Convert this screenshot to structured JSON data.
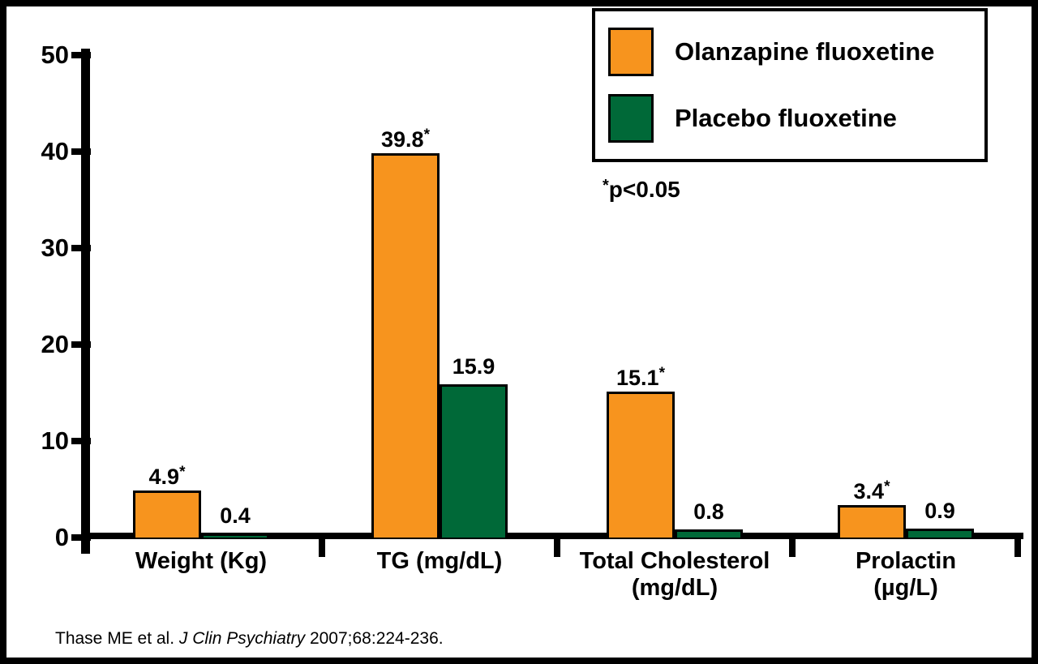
{
  "chart_data": {
    "type": "bar",
    "title": "",
    "xlabel": "",
    "ylabel": "",
    "categories": [
      "Weight (Kg)",
      "TG (mg/dL)",
      "Total Cholesterol\n(mg/dL)",
      "Prolactin\n(µg/L)"
    ],
    "series": [
      {
        "name": "Olanzapine fluoxetine",
        "color": "#F7941E",
        "values": [
          4.9,
          39.8,
          15.1,
          3.4
        ],
        "significant": [
          true,
          true,
          true,
          true
        ]
      },
      {
        "name": "Placebo fluoxetine",
        "color": "#006938",
        "values": [
          0.4,
          15.9,
          0.8,
          0.9
        ],
        "significant": [
          false,
          false,
          false,
          false
        ]
      }
    ],
    "ylim": [
      0,
      50
    ],
    "yticks": [
      0,
      10,
      20,
      30,
      40,
      50
    ],
    "grid": false,
    "legend_position": "top-right",
    "annotation": {
      "star": "*",
      "text": "p<0.05"
    },
    "footnote": {
      "plain_start": "Thase ME et al. ",
      "italic": "J Clin Psychiatry",
      "plain_end": " 2007;68:224-236."
    }
  },
  "colors": {
    "background": "#FFFFFF",
    "frame_border": "#000000",
    "axis": "#000000",
    "bar_outline": "#000000",
    "text": "#000000"
  }
}
